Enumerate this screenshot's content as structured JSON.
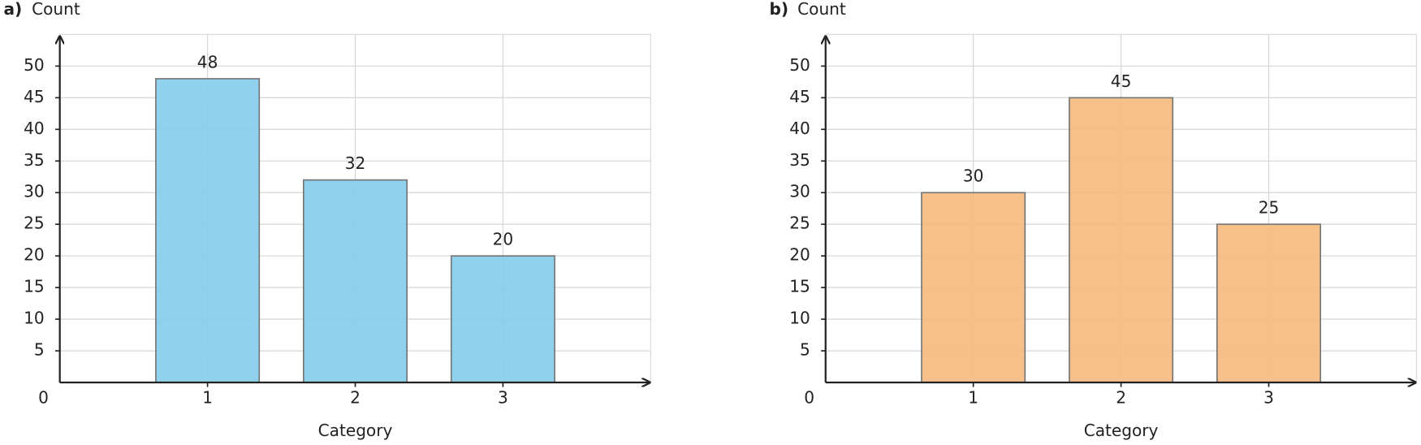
{
  "chart_data": [
    {
      "type": "bar",
      "panel_label": "a)",
      "ylabel": "Count",
      "xlabel": "Category",
      "x": [
        1,
        2,
        3
      ],
      "values": [
        48,
        32,
        20
      ],
      "color": "#87CEEB",
      "xlim": [
        0,
        4
      ],
      "xticks": [
        1,
        2,
        3
      ],
      "ylim": [
        0,
        55
      ],
      "yticks": [
        0,
        5,
        10,
        15,
        20,
        25,
        30,
        35,
        40,
        45,
        50
      ],
      "grid": true
    },
    {
      "type": "bar",
      "panel_label": "b)",
      "ylabel": "Count",
      "xlabel": "Category",
      "x": [
        1,
        2,
        3
      ],
      "values": [
        30,
        45,
        25
      ],
      "color": "#F4BB80",
      "xlim": [
        0,
        4
      ],
      "xticks": [
        1,
        2,
        3
      ],
      "ylim": [
        0,
        55
      ],
      "yticks": [
        0,
        5,
        10,
        15,
        20,
        25,
        30,
        35,
        40,
        45,
        50
      ],
      "grid": true
    }
  ]
}
